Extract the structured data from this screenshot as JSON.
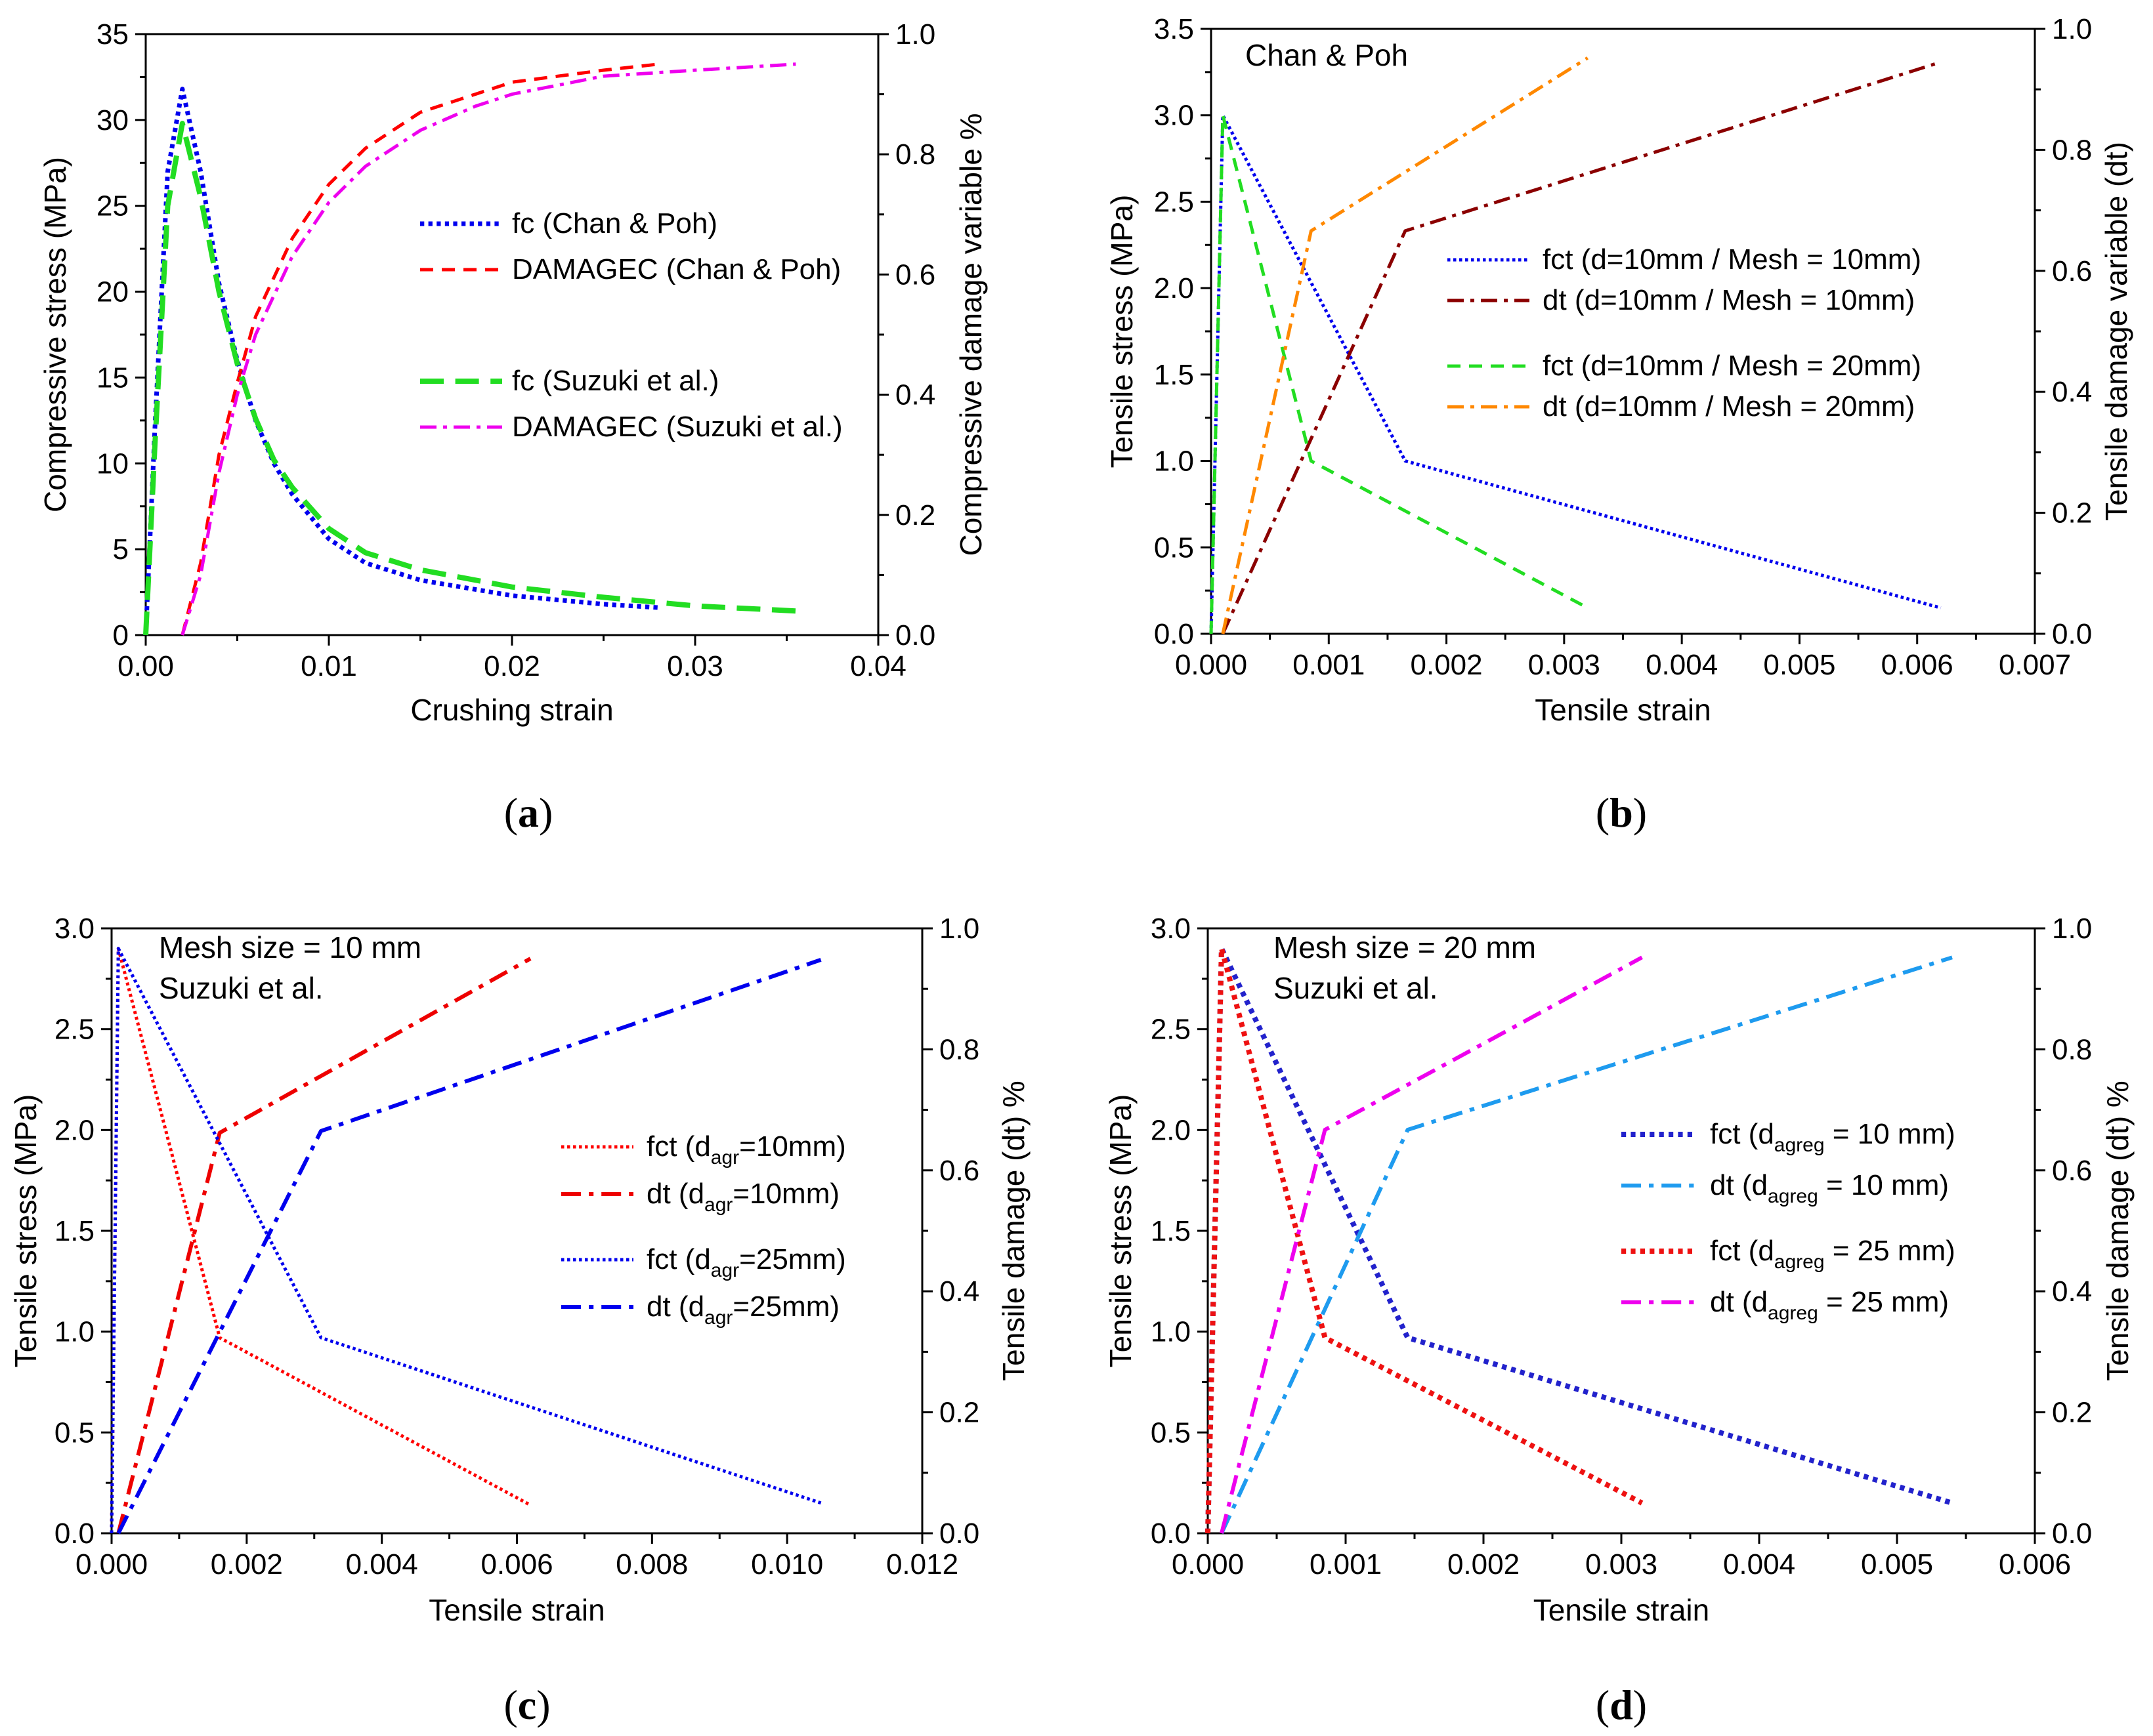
{
  "chart_data": [
    {
      "id": "a",
      "type": "line",
      "panel_label": "a",
      "annotations": [],
      "xlabel": "Crushing strain",
      "ylabel": "Compressive stress (MPa)",
      "y2label": "Compressive damage variable %",
      "xlim": [
        0,
        0.04
      ],
      "ylim": [
        0,
        35
      ],
      "y2lim": [
        0,
        1.0
      ],
      "xticks": [
        "0.00",
        "0.01",
        "0.02",
        "0.03",
        "0.04"
      ],
      "xtickvals": [
        0,
        0.01,
        0.02,
        0.03,
        0.04
      ],
      "yticks": [
        "0",
        "5",
        "10",
        "15",
        "20",
        "25",
        "30",
        "35"
      ],
      "ytickvals": [
        0,
        5,
        10,
        15,
        20,
        25,
        30,
        35
      ],
      "y2ticks": [
        "0.0",
        "0.2",
        "0.4",
        "0.6",
        "0.8",
        "1.0"
      ],
      "y2tickvals": [
        0,
        0.2,
        0.4,
        0.6,
        0.8,
        1.0
      ],
      "series": [
        {
          "name": "fc (Chan & Poh)",
          "axis": "left",
          "color": "#0000ee",
          "dash": "dot",
          "width": 7,
          "x": [
            0,
            0.0005,
            0.0012,
            0.002,
            0.003,
            0.004,
            0.005,
            0.006,
            0.007,
            0.008,
            0.01,
            0.012,
            0.015,
            0.02,
            0.025,
            0.028
          ],
          "y": [
            0,
            12,
            27,
            31.8,
            27,
            20.5,
            16,
            12.5,
            10,
            8.2,
            5.6,
            4.2,
            3.2,
            2.3,
            1.8,
            1.6
          ]
        },
        {
          "name": "DAMAGEC (Chan & Poh)",
          "axis": "right",
          "color": "#ff0000",
          "dash": "dash",
          "width": 5,
          "x": [
            0.002,
            0.003,
            0.004,
            0.005,
            0.006,
            0.008,
            0.01,
            0.012,
            0.015,
            0.018,
            0.02,
            0.025,
            0.028
          ],
          "y": [
            0,
            0.12,
            0.3,
            0.42,
            0.53,
            0.66,
            0.75,
            0.81,
            0.87,
            0.9,
            0.92,
            0.94,
            0.95
          ]
        },
        {
          "name": "fc (Suzuki et al.)",
          "axis": "left",
          "color": "#22dd22",
          "dash": "longdash",
          "width": 8,
          "x": [
            0,
            0.0005,
            0.0012,
            0.002,
            0.003,
            0.004,
            0.005,
            0.006,
            0.007,
            0.008,
            0.01,
            0.012,
            0.015,
            0.02,
            0.025,
            0.03,
            0.0356
          ],
          "y": [
            0,
            11,
            25,
            29.8,
            25.5,
            20,
            15.8,
            12.6,
            10.2,
            8.6,
            6.2,
            4.8,
            3.8,
            2.8,
            2.2,
            1.7,
            1.4
          ]
        },
        {
          "name": "DAMAGEC (Suzuki et al.)",
          "axis": "right",
          "color": "#ee00ee",
          "dash": "dashdot",
          "width": 5,
          "x": [
            0.002,
            0.003,
            0.004,
            0.005,
            0.006,
            0.008,
            0.01,
            0.012,
            0.015,
            0.018,
            0.02,
            0.025,
            0.03,
            0.0355
          ],
          "y": [
            0,
            0.1,
            0.27,
            0.4,
            0.5,
            0.63,
            0.72,
            0.78,
            0.84,
            0.88,
            0.9,
            0.93,
            0.94,
            0.95
          ]
        }
      ]
    },
    {
      "id": "b",
      "type": "line",
      "panel_label": "b",
      "annotations": [
        "Chan & Poh"
      ],
      "xlabel": "Tensile strain",
      "ylabel": "Tensile stress (MPa)",
      "y2label": "Tensile damage variable (dt)",
      "xlim": [
        0,
        0.007
      ],
      "ylim": [
        0,
        3.5
      ],
      "y2lim": [
        0,
        1.0
      ],
      "xticks": [
        "0.000",
        "0.001",
        "0.002",
        "0.003",
        "0.004",
        "0.005",
        "0.006",
        "0.007"
      ],
      "xtickvals": [
        0,
        0.001,
        0.002,
        0.003,
        0.004,
        0.005,
        0.006,
        0.007
      ],
      "yticks": [
        "0.0",
        "0.5",
        "1.0",
        "1.5",
        "2.0",
        "2.5",
        "3.0",
        "3.5"
      ],
      "ytickvals": [
        0,
        0.5,
        1.0,
        1.5,
        2.0,
        2.5,
        3.0,
        3.5
      ],
      "y2ticks": [
        "0.0",
        "0.2",
        "0.4",
        "0.6",
        "0.8",
        "1.0"
      ],
      "y2tickvals": [
        0,
        0.2,
        0.4,
        0.6,
        0.8,
        1.0
      ],
      "series": [
        {
          "name": "fct (d=10mm / Mesh = 10mm)",
          "axis": "left",
          "color": "#0000ee",
          "dash": "dot",
          "width": 5,
          "x": [
            0,
            0.0001,
            0.00165,
            0.0062
          ],
          "y": [
            0,
            3.0,
            1.0,
            0.15
          ]
        },
        {
          "name": "dt (d=10mm / Mesh = 10mm)",
          "axis": "right",
          "color": "#8b0000",
          "dash": "dashdot",
          "width": 5,
          "x": [
            0.0001,
            0.00165,
            0.0062
          ],
          "y": [
            0,
            0.666,
            0.945
          ]
        },
        {
          "name": "fct (d=10mm / Mesh = 20mm)",
          "axis": "left",
          "color": "#22dd22",
          "dash": "dash",
          "width": 5,
          "x": [
            0,
            0.0001,
            0.00085,
            0.0032
          ],
          "y": [
            0,
            3.0,
            1.0,
            0.15
          ]
        },
        {
          "name": "dt (d=10mm / Mesh = 20mm)",
          "axis": "right",
          "color": "#ff8800",
          "dash": "dashdot",
          "width": 5,
          "x": [
            0.0001,
            0.00085,
            0.0032
          ],
          "y": [
            0,
            0.666,
            0.952
          ]
        }
      ]
    },
    {
      "id": "c",
      "type": "line",
      "panel_label": "c",
      "annotations": [
        "Mesh size = 10 mm",
        "Suzuki et al."
      ],
      "xlabel": "Tensile strain",
      "ylabel": "Tensile stress (MPa)",
      "y2label": "Tensile damage (dt) %",
      "xlim": [
        0,
        0.012
      ],
      "ylim": [
        0,
        3.0
      ],
      "y2lim": [
        0,
        1.0
      ],
      "xticks": [
        "0.000",
        "0.002",
        "0.004",
        "0.006",
        "0.008",
        "0.010",
        "0.012"
      ],
      "xtickvals": [
        0,
        0.002,
        0.004,
        0.006,
        0.008,
        0.01,
        0.012
      ],
      "yticks": [
        "0.0",
        "0.5",
        "1.0",
        "1.5",
        "2.0",
        "2.5",
        "3.0"
      ],
      "ytickvals": [
        0,
        0.5,
        1.0,
        1.5,
        2.0,
        2.5,
        3.0
      ],
      "y2ticks": [
        "0.0",
        "0.2",
        "0.4",
        "0.6",
        "0.8",
        "1.0"
      ],
      "y2tickvals": [
        0,
        0.2,
        0.4,
        0.6,
        0.8,
        1.0
      ],
      "series": [
        {
          "name": "fct (d",
          "sub": "agr",
          "suffix": "=10mm)",
          "axis": "left",
          "color": "#ff0000",
          "dash": "dot",
          "width": 5,
          "x": [
            0,
            0.0001,
            0.0016,
            0.0062
          ],
          "y": [
            0,
            2.9,
            0.97,
            0.14
          ]
        },
        {
          "name": "dt (d",
          "sub": "agr",
          "suffix": "=10mm)",
          "axis": "right",
          "color": "#ee0000",
          "dash": "dashdot",
          "width": 6,
          "x": [
            0.0001,
            0.0016,
            0.0062
          ],
          "y": [
            0,
            0.662,
            0.95
          ]
        },
        {
          "name": "fct (d",
          "sub": "agr",
          "suffix": "=25mm)",
          "axis": "left",
          "color": "#0000ee",
          "dash": "dot",
          "width": 5,
          "x": [
            0,
            0.0001,
            0.0031,
            0.0105
          ],
          "y": [
            0,
            2.9,
            0.97,
            0.15
          ]
        },
        {
          "name": "dt (d",
          "sub": "agr",
          "suffix": "=25mm)",
          "axis": "right",
          "color": "#0000ee",
          "dash": "dashdot",
          "width": 6,
          "x": [
            0.0001,
            0.0031,
            0.0105
          ],
          "y": [
            0,
            0.665,
            0.948
          ]
        }
      ]
    },
    {
      "id": "d",
      "type": "line",
      "panel_label": "d",
      "annotations": [
        "Mesh size = 20 mm",
        "Suzuki et al."
      ],
      "xlabel": "Tensile strain",
      "ylabel": "Tensile stress (MPa)",
      "y2label": "Tensile damage (dt) %",
      "xlim": [
        0,
        0.006
      ],
      "ylim": [
        0,
        3.0
      ],
      "y2lim": [
        0,
        1.0
      ],
      "xticks": [
        "0.000",
        "0.001",
        "0.002",
        "0.003",
        "0.004",
        "0.005",
        "0.006"
      ],
      "xtickvals": [
        0,
        0.001,
        0.002,
        0.003,
        0.004,
        0.005,
        0.006
      ],
      "yticks": [
        "0.0",
        "0.5",
        "1.0",
        "1.5",
        "2.0",
        "2.5",
        "3.0"
      ],
      "ytickvals": [
        0,
        0.5,
        1.0,
        1.5,
        2.0,
        2.5,
        3.0
      ],
      "y2ticks": [
        "0.0",
        "0.2",
        "0.4",
        "0.6",
        "0.8",
        "1.0"
      ],
      "y2tickvals": [
        0,
        0.2,
        0.4,
        0.6,
        0.8,
        1.0
      ],
      "series": [
        {
          "name": "fct (d",
          "sub": "agreg",
          "suffix": " = 10 mm)",
          "axis": "left",
          "color": "#2222cc",
          "dash": "dot",
          "width": 8,
          "x": [
            0,
            0.0001,
            0.00145,
            0.0054
          ],
          "y": [
            0,
            2.9,
            0.97,
            0.15
          ]
        },
        {
          "name": "dt (d",
          "sub": "agreg",
          "suffix": " = 10 mm)",
          "axis": "right",
          "color": "#1e9bef",
          "dash": "dashdot",
          "width": 6,
          "x": [
            0.0001,
            0.00145,
            0.0054
          ],
          "y": [
            0,
            0.667,
            0.952
          ]
        },
        {
          "name": "fct (d",
          "sub": "agreg",
          "suffix": " = 25 mm)",
          "axis": "left",
          "color": "#ee1111",
          "dash": "dot",
          "width": 8,
          "x": [
            0,
            0.0001,
            0.00085,
            0.00315
          ],
          "y": [
            0,
            2.9,
            0.97,
            0.15
          ]
        },
        {
          "name": "dt (d",
          "sub": "agreg",
          "suffix": " = 25 mm)",
          "axis": "right",
          "color": "#ee00ee",
          "dash": "dashdot",
          "width": 6,
          "x": [
            0.0001,
            0.00085,
            0.00315
          ],
          "y": [
            0,
            0.667,
            0.952
          ]
        }
      ]
    }
  ]
}
